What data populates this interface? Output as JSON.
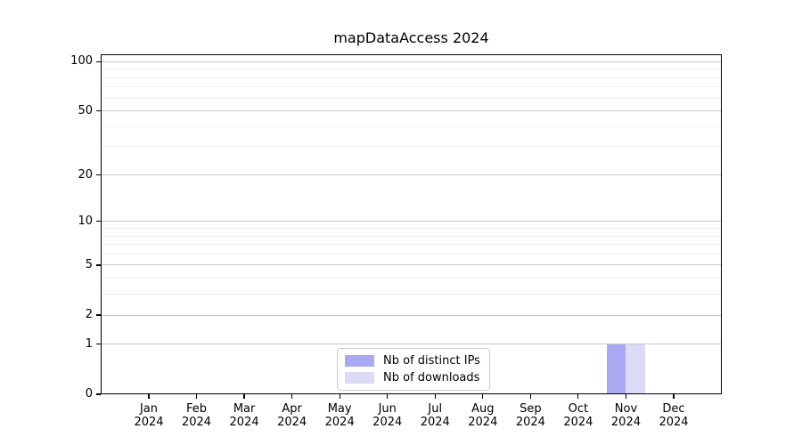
{
  "chart_data": {
    "type": "bar",
    "title": "mapDataAccess 2024",
    "xlabel": "",
    "ylabel": "",
    "categories": [
      [
        "Jan",
        "2024"
      ],
      [
        "Feb",
        "2024"
      ],
      [
        "Mar",
        "2024"
      ],
      [
        "Apr",
        "2024"
      ],
      [
        "May",
        "2024"
      ],
      [
        "Jun",
        "2024"
      ],
      [
        "Jul",
        "2024"
      ],
      [
        "Aug",
        "2024"
      ],
      [
        "Sep",
        "2024"
      ],
      [
        "Oct",
        "2024"
      ],
      [
        "Nov",
        "2024"
      ],
      [
        "Dec",
        "2024"
      ]
    ],
    "series": [
      {
        "name": "Nb of distinct IPs",
        "color": "#a9a9f3",
        "values": [
          0,
          0,
          0,
          0,
          0,
          0,
          0,
          0,
          0,
          0,
          1,
          0
        ]
      },
      {
        "name": "Nb of downloads",
        "color": "#dbdbf8",
        "values": [
          0,
          0,
          0,
          0,
          0,
          0,
          0,
          0,
          0,
          0,
          1,
          0
        ]
      }
    ],
    "yscale": "log1p",
    "ylim": [
      0,
      111
    ],
    "yticks": [
      100,
      50,
      20,
      10,
      5,
      2,
      1,
      0
    ],
    "minor_gridlines": [
      3,
      4,
      6,
      7,
      8,
      9,
      30,
      40,
      60,
      70,
      80,
      90
    ],
    "grid": true,
    "legend": {
      "position": "lower-center",
      "entries": [
        "Nb of distinct IPs",
        "Nb of downloads"
      ]
    },
    "colors": {
      "background": "#ffffff",
      "spine": "#000000",
      "text": "#000000",
      "grid_major": "#c6c6c6",
      "grid_minor": "#efefef"
    }
  }
}
